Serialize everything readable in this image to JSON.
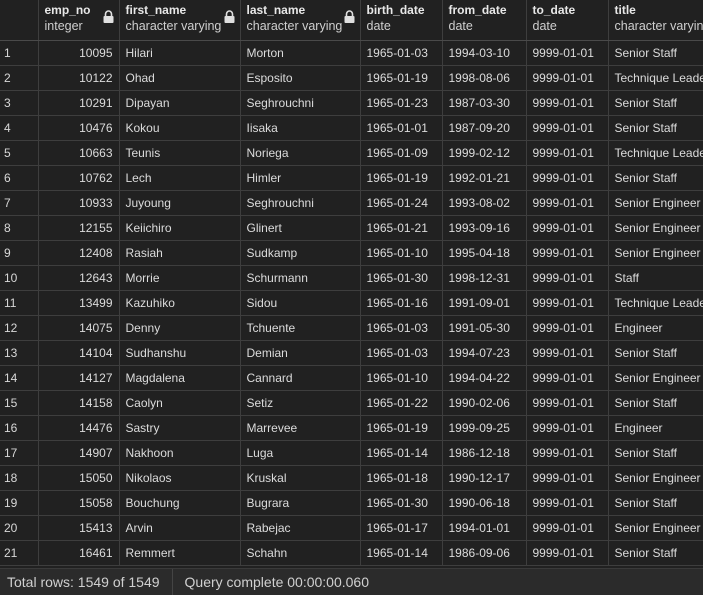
{
  "columns": [
    {
      "name": "emp_no",
      "type": "integer"
    },
    {
      "name": "first_name",
      "type": "character varying"
    },
    {
      "name": "last_name",
      "type": "character varying"
    },
    {
      "name": "birth_date",
      "type": "date"
    },
    {
      "name": "from_date",
      "type": "date"
    },
    {
      "name": "to_date",
      "type": "date"
    },
    {
      "name": "title",
      "type": "character varying"
    }
  ],
  "rows": [
    {
      "idx": "1",
      "cells": [
        "10095",
        "Hilari",
        "Morton",
        "1965-01-03",
        "1994-03-10",
        "9999-01-01",
        "Senior Staff"
      ]
    },
    {
      "idx": "2",
      "cells": [
        "10122",
        "Ohad",
        "Esposito",
        "1965-01-19",
        "1998-08-06",
        "9999-01-01",
        "Technique Leader"
      ]
    },
    {
      "idx": "3",
      "cells": [
        "10291",
        "Dipayan",
        "Seghrouchni",
        "1965-01-23",
        "1987-03-30",
        "9999-01-01",
        "Senior Staff"
      ]
    },
    {
      "idx": "4",
      "cells": [
        "10476",
        "Kokou",
        "Iisaka",
        "1965-01-01",
        "1987-09-20",
        "9999-01-01",
        "Senior Staff"
      ]
    },
    {
      "idx": "5",
      "cells": [
        "10663",
        "Teunis",
        "Noriega",
        "1965-01-09",
        "1999-02-12",
        "9999-01-01",
        "Technique Leader"
      ]
    },
    {
      "idx": "6",
      "cells": [
        "10762",
        "Lech",
        "Himler",
        "1965-01-19",
        "1992-01-21",
        "9999-01-01",
        "Senior Staff"
      ]
    },
    {
      "idx": "7",
      "cells": [
        "10933",
        "Juyoung",
        "Seghrouchni",
        "1965-01-24",
        "1993-08-02",
        "9999-01-01",
        "Senior Engineer"
      ]
    },
    {
      "idx": "8",
      "cells": [
        "12155",
        "Keiichiro",
        "Glinert",
        "1965-01-21",
        "1993-09-16",
        "9999-01-01",
        "Senior Engineer"
      ]
    },
    {
      "idx": "9",
      "cells": [
        "12408",
        "Rasiah",
        "Sudkamp",
        "1965-01-10",
        "1995-04-18",
        "9999-01-01",
        "Senior Engineer"
      ]
    },
    {
      "idx": "10",
      "cells": [
        "12643",
        "Morrie",
        "Schurmann",
        "1965-01-30",
        "1998-12-31",
        "9999-01-01",
        "Staff"
      ]
    },
    {
      "idx": "11",
      "cells": [
        "13499",
        "Kazuhiko",
        "Sidou",
        "1965-01-16",
        "1991-09-01",
        "9999-01-01",
        "Technique Leader"
      ]
    },
    {
      "idx": "12",
      "cells": [
        "14075",
        "Denny",
        "Tchuente",
        "1965-01-03",
        "1991-05-30",
        "9999-01-01",
        "Engineer"
      ]
    },
    {
      "idx": "13",
      "cells": [
        "14104",
        "Sudhanshu",
        "Demian",
        "1965-01-03",
        "1994-07-23",
        "9999-01-01",
        "Senior Staff"
      ]
    },
    {
      "idx": "14",
      "cells": [
        "14127",
        "Magdalena",
        "Cannard",
        "1965-01-10",
        "1994-04-22",
        "9999-01-01",
        "Senior Engineer"
      ]
    },
    {
      "idx": "15",
      "cells": [
        "14158",
        "Caolyn",
        "Setiz",
        "1965-01-22",
        "1990-02-06",
        "9999-01-01",
        "Senior Staff"
      ]
    },
    {
      "idx": "16",
      "cells": [
        "14476",
        "Sastry",
        "Marrevee",
        "1965-01-19",
        "1999-09-25",
        "9999-01-01",
        "Engineer"
      ]
    },
    {
      "idx": "17",
      "cells": [
        "14907",
        "Nakhoon",
        "Luga",
        "1965-01-14",
        "1986-12-18",
        "9999-01-01",
        "Senior Staff"
      ]
    },
    {
      "idx": "18",
      "cells": [
        "15050",
        "Nikolaos",
        "Kruskal",
        "1965-01-18",
        "1990-12-17",
        "9999-01-01",
        "Senior Engineer"
      ]
    },
    {
      "idx": "19",
      "cells": [
        "15058",
        "Bouchung",
        "Bugrara",
        "1965-01-30",
        "1990-06-18",
        "9999-01-01",
        "Senior Staff"
      ]
    },
    {
      "idx": "20",
      "cells": [
        "15413",
        "Arvin",
        "Rabejac",
        "1965-01-17",
        "1994-01-01",
        "9999-01-01",
        "Senior Engineer"
      ]
    },
    {
      "idx": "21",
      "cells": [
        "16461",
        "Remmert",
        "Schahn",
        "1965-01-14",
        "1986-09-06",
        "9999-01-01",
        "Senior Staff"
      ]
    }
  ],
  "status": {
    "total_rows": "Total rows: 1549 of 1549",
    "query": "Query complete 00:00:00.060"
  },
  "colors": {
    "background": "#212121",
    "grid_line": "#3e3e3e",
    "text": "#dcdcdc"
  }
}
